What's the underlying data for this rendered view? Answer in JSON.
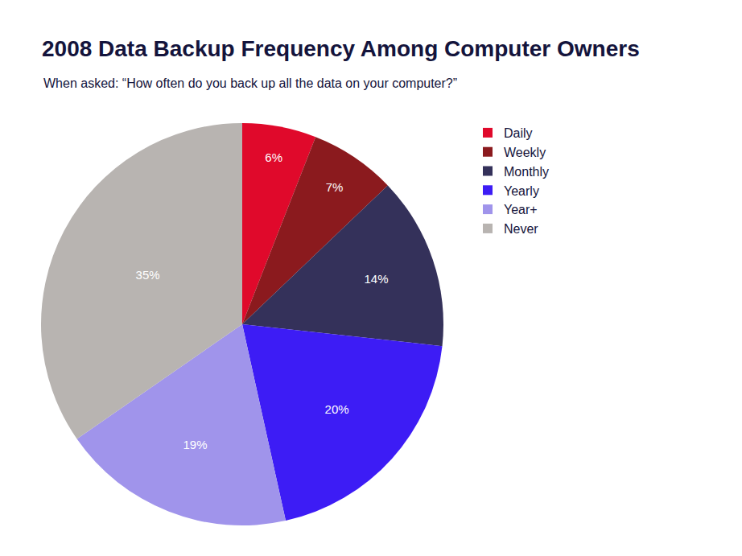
{
  "chart_data": {
    "type": "pie",
    "title": "2008 Data Backup Frequency Among Computer Owners",
    "subtitle": "When asked: “How often do you back up all the data on your computer?”",
    "categories": [
      "Daily",
      "Weekly",
      "Monthly",
      "Yearly",
      "Year+",
      "Never"
    ],
    "values": [
      6,
      7,
      14,
      20,
      19,
      35
    ],
    "value_labels": [
      "6%",
      "7%",
      "14%",
      "20%",
      "19%",
      "35%"
    ],
    "colors": [
      "#e0092b",
      "#8b1a1e",
      "#34315a",
      "#3d1cf5",
      "#a094eb",
      "#b8b4b1"
    ],
    "data_labels": true,
    "legend": "top right"
  }
}
